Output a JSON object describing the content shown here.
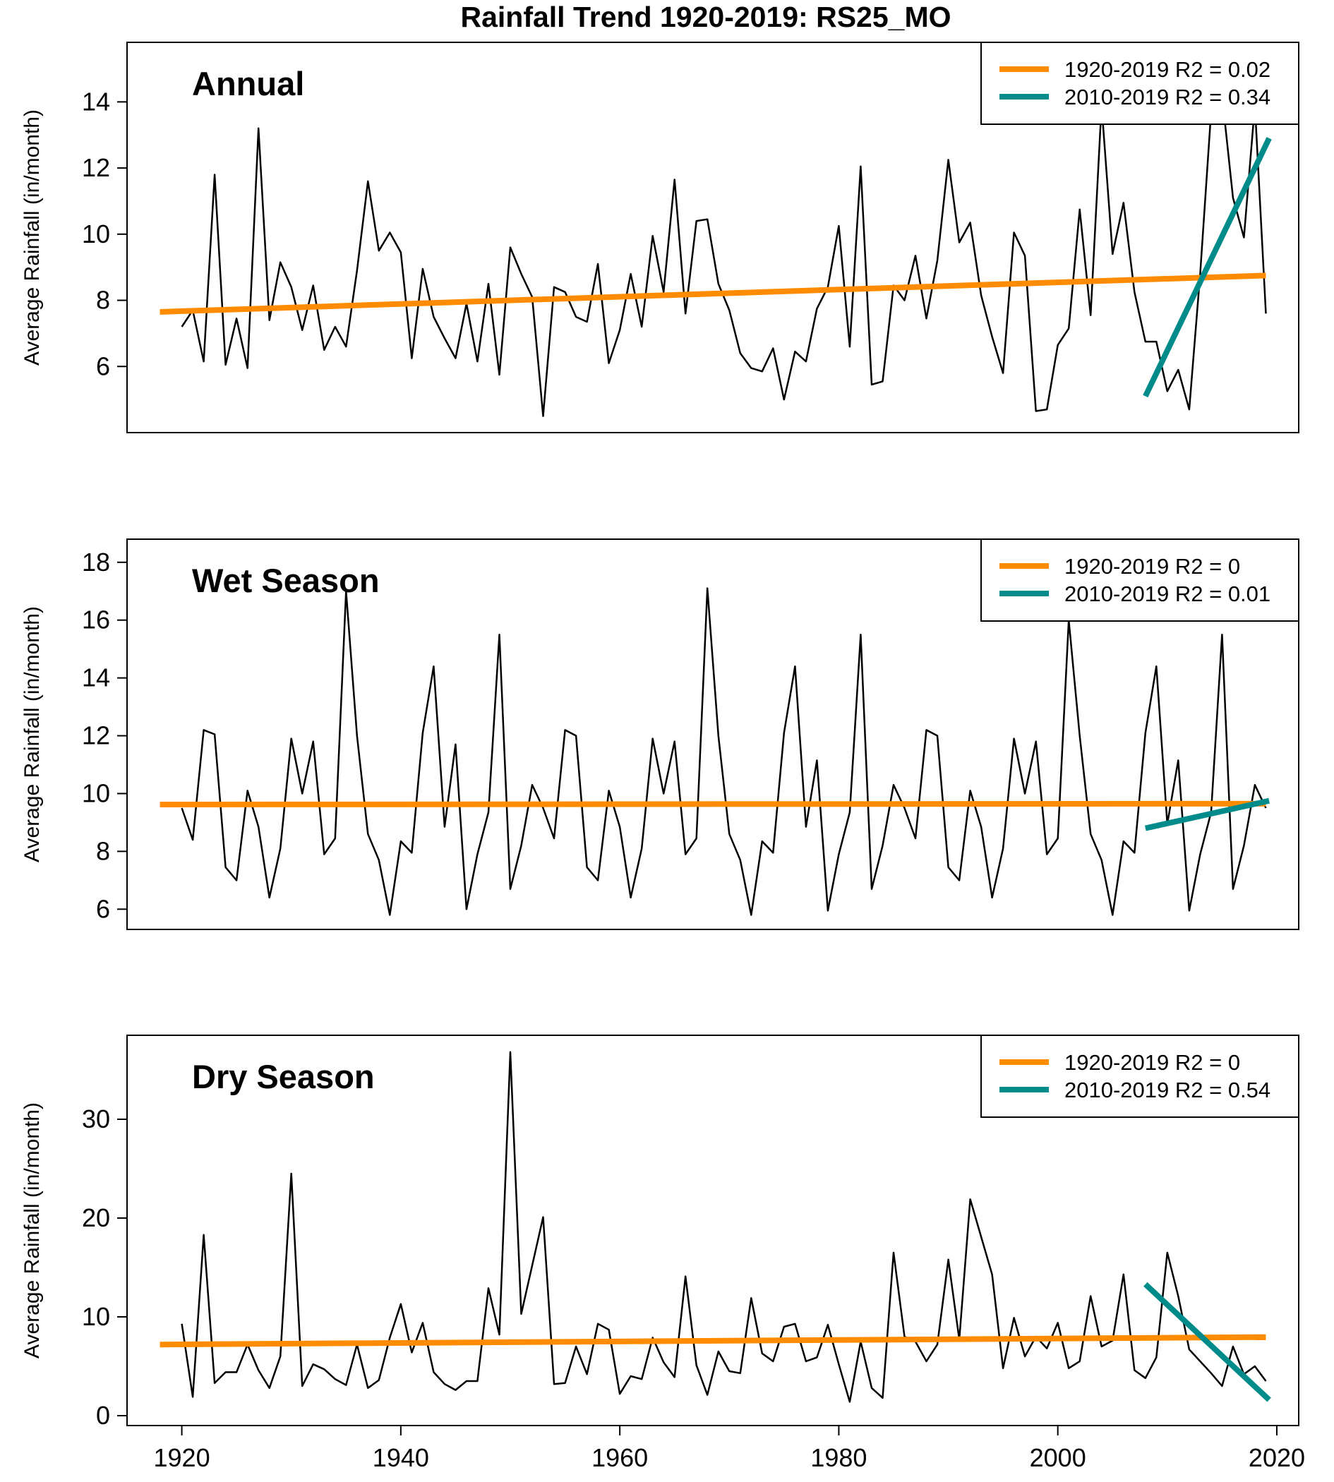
{
  "title": "Rainfall Trend 1920-2019: RS25_MO",
  "chart_data": [
    {
      "type": "line",
      "title": "Annual",
      "ylabel": "Average Rainfall (in/month)",
      "xlim": [
        1915,
        2022
      ],
      "ylim": [
        4.0,
        15.8
      ],
      "yticks": [
        6,
        8,
        10,
        12,
        14
      ],
      "x": [
        1920,
        1921,
        1922,
        1923,
        1924,
        1925,
        1926,
        1927,
        1928,
        1929,
        1930,
        1931,
        1932,
        1933,
        1934,
        1935,
        1936,
        1937,
        1938,
        1939,
        1940,
        1941,
        1942,
        1943,
        1944,
        1945,
        1946,
        1947,
        1948,
        1949,
        1950,
        1951,
        1952,
        1953,
        1954,
        1955,
        1956,
        1957,
        1958,
        1959,
        1960,
        1961,
        1962,
        1963,
        1964,
        1965,
        1966,
        1967,
        1968,
        1969,
        1970,
        1971,
        1972,
        1973,
        1974,
        1975,
        1976,
        1977,
        1978,
        1979,
        1980,
        1981,
        1982,
        1983,
        1984,
        1985,
        1986,
        1987,
        1988,
        1989,
        1990,
        1991,
        1992,
        1993,
        1994,
        1995,
        1996,
        1997,
        1998,
        1999,
        2000,
        2001,
        2002,
        2003,
        2004,
        2005,
        2006,
        2007,
        2008,
        2009,
        2010,
        2011,
        2012,
        2013,
        2014,
        2015,
        2016,
        2017,
        2018,
        2019
      ],
      "series": [
        {
          "color": "#000000",
          "values": [
            7.2,
            7.7,
            6.15,
            11.8,
            6.05,
            7.45,
            5.95,
            13.2,
            7.4,
            9.15,
            8.4,
            7.1,
            8.45,
            6.5,
            7.2,
            6.6,
            8.9,
            11.6,
            9.5,
            10.05,
            9.45,
            6.25,
            8.95,
            7.5,
            6.85,
            6.25,
            7.9,
            6.15,
            8.5,
            5.75,
            9.6,
            8.8,
            8.1,
            4.5,
            8.4,
            8.25,
            7.5,
            7.35,
            9.1,
            6.1,
            7.1,
            8.8,
            7.2,
            9.95,
            8.25,
            11.65,
            7.6,
            10.4,
            10.45,
            8.5,
            7.7,
            6.4,
            5.95,
            5.85,
            6.55,
            5.0,
            6.45,
            6.15,
            7.75,
            8.4,
            10.25,
            6.6,
            12.05,
            5.45,
            5.55,
            8.45,
            8.0,
            9.35,
            7.45,
            9.2,
            12.25,
            9.75,
            10.35,
            8.15,
            6.9,
            5.8,
            10.05,
            9.35,
            4.65,
            4.7,
            6.65,
            7.15,
            10.75,
            7.55,
            13.9,
            9.4,
            10.95,
            8.25,
            6.75,
            6.75,
            5.25,
            5.9,
            4.7,
            8.8,
            13.7,
            14.2,
            11.1,
            9.9,
            13.9,
            7.6
          ]
        }
      ],
      "trend_lines": [
        {
          "color": "#ff8c00",
          "x": [
            1918,
            2019
          ],
          "y": [
            7.65,
            8.75
          ]
        },
        {
          "color": "#008b8b",
          "x": [
            2008,
            2019.3
          ],
          "y": [
            5.1,
            12.9
          ]
        }
      ],
      "legend": {
        "position": "top-right",
        "entries": [
          {
            "label": "1920-2019  R2 = 0.02",
            "color": "#ff8c00"
          },
          {
            "label": "2010-2019  R2 = 0.34",
            "color": "#008b8b"
          }
        ]
      }
    },
    {
      "type": "line",
      "title": "Wet Season",
      "ylabel": "Average Rainfall (in/month)",
      "xlim": [
        1915,
        2022
      ],
      "ylim": [
        5.3,
        18.8
      ],
      "yticks": [
        6,
        8,
        10,
        12,
        14,
        16,
        18
      ],
      "x": [
        1920,
        1921,
        1922,
        1923,
        1924,
        1925,
        1926,
        1927,
        1928,
        1929,
        1930,
        1931,
        1932,
        1933,
        1934,
        1935,
        1936,
        1937,
        1938,
        1939,
        1940,
        1941,
        1942,
        1943,
        1944,
        1945,
        1946,
        1947,
        1948,
        1949,
        1950,
        1951,
        1952,
        1953,
        1954,
        1955,
        1956,
        1957,
        1958,
        1959,
        1960,
        1961,
        1962,
        1963,
        1964,
        1965,
        1966,
        1967,
        1968,
        1969,
        1970,
        1971,
        1972,
        1973,
        1974,
        1975,
        1976,
        1977,
        1978,
        1979,
        1980,
        1981,
        1982,
        1983,
        1984,
        1985,
        1986,
        1987,
        1988,
        1989,
        1990,
        1991,
        1992,
        1993,
        1994,
        1995,
        1996,
        1997,
        1998,
        1999,
        2000,
        2001,
        2002,
        2003,
        2004,
        2005,
        2006,
        2007,
        2008,
        2009,
        2010,
        2011,
        2012,
        2013,
        2014,
        2015,
        2016,
        2017,
        2018,
        2019
      ],
      "series": [
        {
          "color": "#000000",
          "values": [
            9.5,
            8.4,
            12.2,
            12.05,
            7.45,
            7.0,
            10.1,
            8.85,
            6.4,
            8.1,
            11.9,
            10.0,
            11.8,
            7.9,
            8.45,
            17.0,
            12.0,
            8.6,
            7.7,
            5.8,
            8.35,
            7.95,
            12.1,
            14.4,
            8.85,
            11.7,
            6.0,
            7.9,
            9.35,
            15.5,
            6.7,
            8.2,
            10.3,
            9.5,
            8.45,
            12.2,
            12.0,
            7.45,
            7.0,
            10.1,
            8.85,
            6.4,
            8.1,
            11.9,
            10.0,
            11.8,
            7.9,
            8.45,
            17.1,
            12.0,
            8.6,
            7.7,
            5.8,
            8.35,
            7.95,
            12.1,
            14.4,
            8.85,
            11.15,
            5.95,
            7.9,
            9.35,
            15.5,
            6.7,
            8.2,
            10.3,
            9.5,
            8.45,
            12.2,
            12.0,
            7.45,
            7.0,
            10.1,
            8.85,
            6.4,
            8.1,
            11.9,
            10.0,
            11.8,
            7.9,
            8.45,
            16.0,
            12.0,
            8.6,
            7.7,
            5.8,
            8.35,
            7.95,
            12.1,
            14.4,
            8.95,
            11.15,
            5.95,
            7.9,
            9.35,
            15.5,
            6.7,
            8.2,
            10.3,
            9.5
          ]
        }
      ],
      "trend_lines": [
        {
          "color": "#ff8c00",
          "x": [
            1918,
            2019
          ],
          "y": [
            9.62,
            9.65
          ]
        },
        {
          "color": "#008b8b",
          "x": [
            2008,
            2019.3
          ],
          "y": [
            8.8,
            9.75
          ]
        }
      ],
      "legend": {
        "position": "top-right",
        "entries": [
          {
            "label": "1920-2019  R2 = 0",
            "color": "#ff8c00"
          },
          {
            "label": "2010-2019  R2 = 0.01",
            "color": "#008b8b"
          }
        ]
      }
    },
    {
      "type": "line",
      "title": "Dry Season",
      "ylabel": "Average Rainfall (in/month)",
      "xlim": [
        1915,
        2022
      ],
      "ylim": [
        -1.0,
        38.5
      ],
      "yticks": [
        0,
        10,
        20,
        30
      ],
      "xticks": [
        1920,
        1940,
        1960,
        1980,
        2000,
        2020
      ],
      "x": [
        1920,
        1921,
        1922,
        1923,
        1924,
        1925,
        1926,
        1927,
        1928,
        1929,
        1930,
        1931,
        1932,
        1933,
        1934,
        1935,
        1936,
        1937,
        1938,
        1939,
        1940,
        1941,
        1942,
        1943,
        1944,
        1945,
        1946,
        1947,
        1948,
        1949,
        1950,
        1951,
        1952,
        1953,
        1954,
        1955,
        1956,
        1957,
        1958,
        1959,
        1960,
        1961,
        1962,
        1963,
        1964,
        1965,
        1966,
        1967,
        1968,
        1969,
        1970,
        1971,
        1972,
        1973,
        1974,
        1975,
        1976,
        1977,
        1978,
        1979,
        1980,
        1981,
        1982,
        1983,
        1984,
        1985,
        1986,
        1987,
        1988,
        1989,
        1990,
        1991,
        1992,
        1993,
        1994,
        1995,
        1996,
        1997,
        1998,
        1999,
        2000,
        2001,
        2002,
        2003,
        2004,
        2005,
        2006,
        2007,
        2008,
        2009,
        2010,
        2011,
        2012,
        2013,
        2014,
        2015,
        2016,
        2017,
        2018,
        2019
      ],
      "series": [
        {
          "color": "#000000",
          "values": [
            9.3,
            1.9,
            18.3,
            3.3,
            4.4,
            4.4,
            7.2,
            4.6,
            2.8,
            6.0,
            24.5,
            3.0,
            5.2,
            4.7,
            3.7,
            3.1,
            7.2,
            2.8,
            3.6,
            7.9,
            11.3,
            6.4,
            9.4,
            4.4,
            3.2,
            2.6,
            3.5,
            3.5,
            12.9,
            8.2,
            36.8,
            10.3,
            15.2,
            20.1,
            3.2,
            3.3,
            7.0,
            4.2,
            9.3,
            8.7,
            2.2,
            4.0,
            3.7,
            7.9,
            5.4,
            3.9,
            14.1,
            5.1,
            2.1,
            6.5,
            4.5,
            4.3,
            11.9,
            6.3,
            5.5,
            9.0,
            9.3,
            5.5,
            5.9,
            9.2,
            5.2,
            1.4,
            7.5,
            2.8,
            1.8,
            16.5,
            8.0,
            7.5,
            5.5,
            7.2,
            15.8,
            7.7,
            21.9,
            18.1,
            14.3,
            4.8,
            9.9,
            6.0,
            8.0,
            6.8,
            9.4,
            4.8,
            5.5,
            12.1,
            7.0,
            7.6,
            14.3,
            4.6,
            3.8,
            5.9,
            16.5,
            12.1,
            6.7,
            5.5,
            4.3,
            3.0,
            7.0,
            4.2,
            5.0,
            3.5
          ]
        }
      ],
      "trend_lines": [
        {
          "color": "#ff8c00",
          "x": [
            1918,
            2019
          ],
          "y": [
            7.2,
            7.95
          ]
        },
        {
          "color": "#008b8b",
          "x": [
            2008,
            2019.3
          ],
          "y": [
            13.3,
            1.6
          ]
        }
      ],
      "legend": {
        "position": "top-right",
        "entries": [
          {
            "label": "1920-2019  R2 = 0",
            "color": "#ff8c00"
          },
          {
            "label": "2010-2019  R2 = 0.54",
            "color": "#008b8b"
          }
        ]
      }
    }
  ]
}
